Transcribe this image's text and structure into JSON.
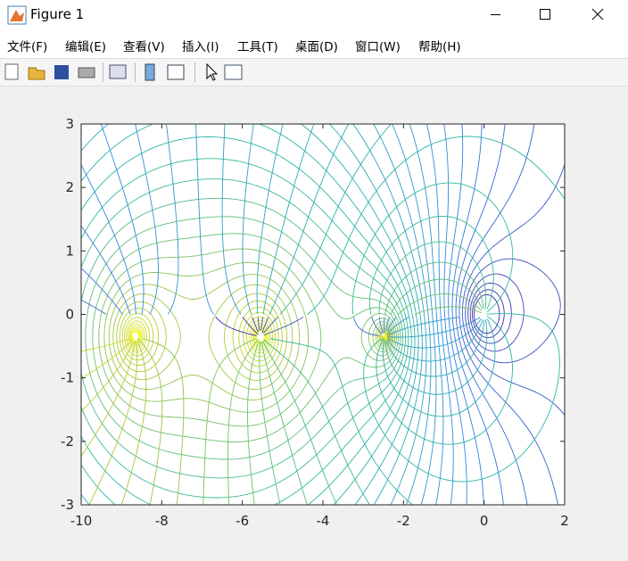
{
  "window": {
    "title": "Figure 1",
    "menu": [
      "文件(F)",
      "编辑(E)",
      "查看(V)",
      "插入(I)",
      "工具(T)",
      "桌面(D)",
      "窗口(W)",
      "帮助(H)"
    ]
  },
  "chart_data": {
    "type": "contour",
    "xlim": [
      -10,
      2
    ],
    "ylim": [
      -3,
      3
    ],
    "xticks": [
      -10,
      -8,
      -6,
      -4,
      -2,
      0,
      2
    ],
    "yticks": [
      -3,
      -2,
      -1,
      0,
      1,
      2,
      3
    ]
  }
}
